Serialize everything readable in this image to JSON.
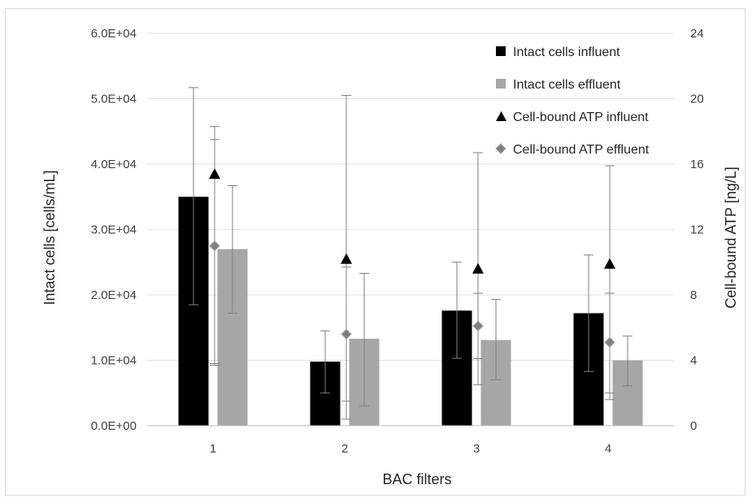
{
  "chart_data": {
    "type": "bar",
    "categories": [
      "1",
      "2",
      "3",
      "4"
    ],
    "xlabel": "BAC filters",
    "ylabel": "Intact cells [cells/mL]",
    "y2label": "Cell-bound ATP [ng/L]",
    "ylim": [
      0,
      60000
    ],
    "y2lim": [
      0,
      24
    ],
    "yticks": [
      "0.0E+00",
      "1.0E+04",
      "2.0E+04",
      "3.0E+04",
      "4.0E+04",
      "5.0E+04",
      "6.0E+04"
    ],
    "y2ticks": [
      "0",
      "4",
      "8",
      "12",
      "16",
      "20",
      "24"
    ],
    "grid": true,
    "legend_position": "top-right",
    "series": [
      {
        "name": "Intact cells influent",
        "kind": "bar",
        "axis": "left",
        "color": "#000000",
        "values": [
          35000,
          9800,
          17600,
          17200
        ],
        "error_low": [
          18500,
          5000,
          10300,
          8300
        ],
        "error_high": [
          51700,
          14500,
          25000,
          26100
        ]
      },
      {
        "name": "Intact cells effluent",
        "kind": "bar",
        "axis": "left",
        "color": "#a6a6a6",
        "values": [
          27000,
          13300,
          13100,
          10000
        ],
        "error_low": [
          17200,
          3000,
          7000,
          6100
        ],
        "error_high": [
          36700,
          23300,
          19300,
          13700
        ]
      },
      {
        "name": "Cell-bound ATP influent",
        "kind": "marker",
        "marker": "triangle",
        "axis": "right",
        "color": "#000000",
        "values": [
          15.4,
          10.2,
          9.6,
          9.9
        ],
        "error_low": [
          3.7,
          1.5,
          2.5,
          2.0
        ],
        "error_high": [
          18.3,
          20.2,
          16.7,
          15.9
        ]
      },
      {
        "name": "Cell-bound ATP effluent",
        "kind": "marker",
        "marker": "diamond",
        "axis": "right",
        "color": "#7f7f7f",
        "values": [
          11.0,
          5.6,
          6.1,
          5.1
        ],
        "error_low": [
          3.8,
          0.4,
          4.1,
          1.6
        ],
        "error_high": [
          17.5,
          9.7,
          8.1,
          8.1
        ]
      }
    ]
  }
}
